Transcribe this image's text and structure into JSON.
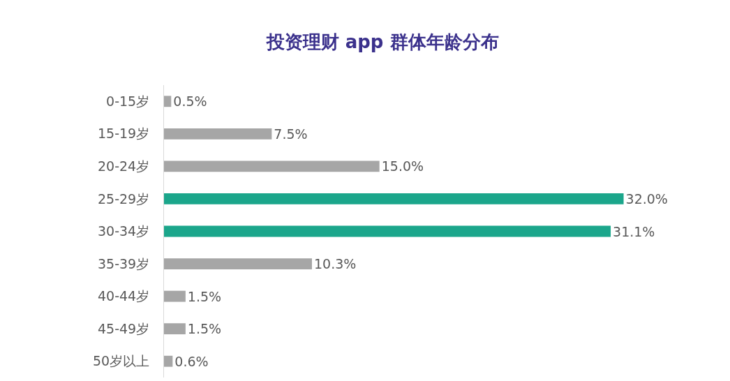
{
  "chart_data": {
    "type": "bar",
    "orientation": "horizontal",
    "title": "投资理财 app 群体年龄分布",
    "categories": [
      "0-15岁",
      "15-19岁",
      "20-24岁",
      "25-29岁",
      "30-34岁",
      "35-39岁",
      "40-44岁",
      "45-49岁",
      "50岁以上"
    ],
    "values": [
      0.5,
      7.5,
      15.0,
      32.0,
      31.1,
      10.3,
      1.5,
      1.5,
      0.6
    ],
    "value_labels": [
      "0.5%",
      "7.5%",
      "15.0%",
      "32.0%",
      "31.1%",
      "10.3%",
      "1.5%",
      "1.5%",
      "0.6%"
    ],
    "colors": [
      "#a6a6a6",
      "#a6a6a6",
      "#a6a6a6",
      "#1ba68b",
      "#1ba68b",
      "#a6a6a6",
      "#a6a6a6",
      "#a6a6a6",
      "#a6a6a6"
    ],
    "tick_labels": "y"
  }
}
